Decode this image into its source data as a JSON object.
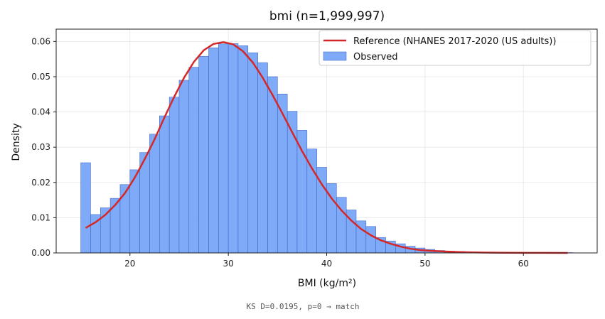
{
  "chart_data": {
    "type": "bar",
    "title": "bmi  (n=1,999,997)",
    "xlabel": "BMI (kg/m²)",
    "ylabel": "Density",
    "xlim": [
      12.5,
      67.5
    ],
    "ylim": [
      0,
      0.0635
    ],
    "xticks": [
      20,
      30,
      40,
      50,
      60
    ],
    "yticks": [
      0.0,
      0.01,
      0.02,
      0.03,
      0.04,
      0.05,
      0.06
    ],
    "ytick_labels": [
      "0.00",
      "0.01",
      "0.02",
      "0.03",
      "0.04",
      "0.05",
      "0.06"
    ],
    "grid": true,
    "legend_position": "top-right",
    "colors": {
      "observed_fill": "#7eaaf8",
      "observed_edge": "#3a5ec0",
      "reference_line": "#d62728"
    },
    "observed": {
      "name": "Observed",
      "bin_width": 1,
      "bin_starts": [
        15,
        16,
        17,
        18,
        19,
        20,
        21,
        22,
        23,
        24,
        25,
        26,
        27,
        28,
        29,
        30,
        31,
        32,
        33,
        34,
        35,
        36,
        37,
        38,
        39,
        40,
        41,
        42,
        43,
        44,
        45,
        46,
        47,
        48,
        49,
        50,
        51,
        52,
        53,
        54,
        55,
        56,
        57,
        58,
        59,
        60,
        61,
        62,
        63,
        64
      ],
      "values": [
        0.0256,
        0.0109,
        0.0128,
        0.0155,
        0.0194,
        0.0236,
        0.0285,
        0.0337,
        0.0389,
        0.0442,
        0.049,
        0.0527,
        0.0558,
        0.0582,
        0.0593,
        0.0594,
        0.0588,
        0.0568,
        0.054,
        0.05,
        0.0451,
        0.0402,
        0.0348,
        0.0295,
        0.0243,
        0.0197,
        0.0158,
        0.0122,
        0.0091,
        0.0075,
        0.0044,
        0.0034,
        0.0026,
        0.0019,
        0.0014,
        0.001,
        0.0007,
        0.0005,
        0.0004,
        0.0003,
        0.0002,
        0.0002,
        0.0001,
        0.0001,
        0.0001,
        0.0001,
        0.0001,
        0.0001,
        0.0001,
        0.0001
      ]
    },
    "reference": {
      "name": "Reference (NHANES 2017-2020 (US adults))",
      "x": [
        15.5,
        16.5,
        17.5,
        18.5,
        19.5,
        20.5,
        21.5,
        22.5,
        23.5,
        24.5,
        25.5,
        26.5,
        27.5,
        28.5,
        29.5,
        30.5,
        31.5,
        32.5,
        33.5,
        34.5,
        35.5,
        36.5,
        37.5,
        38.5,
        39.5,
        40.5,
        41.5,
        42.5,
        43.5,
        44.5,
        45.5,
        46.5,
        47.5,
        48.5,
        49.5,
        50.5,
        52,
        54,
        56,
        58,
        60,
        62,
        64.5
      ],
      "y": [
        0.0071,
        0.0087,
        0.0108,
        0.0136,
        0.017,
        0.0214,
        0.0266,
        0.0322,
        0.0384,
        0.0443,
        0.0497,
        0.0542,
        0.0575,
        0.0593,
        0.0598,
        0.0592,
        0.0572,
        0.054,
        0.0497,
        0.0448,
        0.0396,
        0.0342,
        0.0289,
        0.024,
        0.0195,
        0.0155,
        0.0121,
        0.0092,
        0.0068,
        0.005,
        0.0036,
        0.0026,
        0.0018,
        0.0012,
        0.0008,
        0.0006,
        0.0004,
        0.0002,
        0.0001,
        5e-05,
        3e-05,
        2e-05,
        1e-05
      ]
    },
    "annotation": "KS D=0.0195, p=0 → match"
  }
}
